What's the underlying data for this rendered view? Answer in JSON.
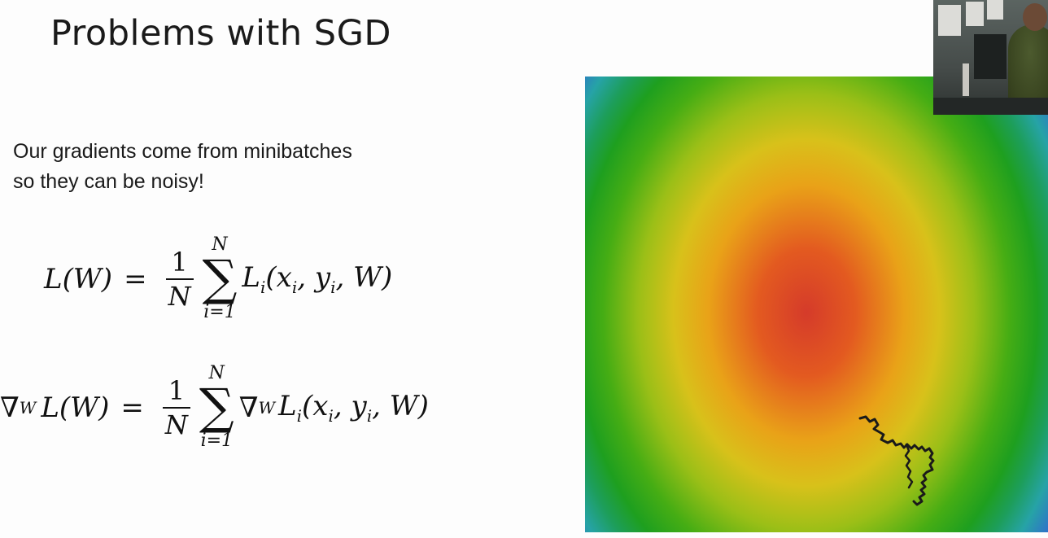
{
  "slide": {
    "title": "Problems with SGD",
    "body_lines": [
      "Our gradients come from minibatches",
      "so they can be noisy!"
    ]
  },
  "formula1": {
    "lhs": "L(W)",
    "eq": "=",
    "frac_num": "1",
    "frac_den": "N",
    "sum_top": "N",
    "sum_bottom": "i=1",
    "term": "L",
    "term_sub": "i",
    "args": "(x",
    "args_sub1": "i",
    "args_mid": ", y",
    "args_sub2": "i",
    "args_end": ", W)"
  },
  "formula2": {
    "nabla": "∇",
    "nabla_sub": "W",
    "lhs": "L(W)",
    "eq": "=",
    "frac_num": "1",
    "frac_den": "N",
    "sum_top": "N",
    "sum_bottom": "i=1",
    "term_nabla": "∇",
    "term_nabla_sub": "W",
    "term": "L",
    "term_sub": "i",
    "args": "(x",
    "args_sub1": "i",
    "args_mid": ", y",
    "args_sub2": "i",
    "args_end": ", W)"
  },
  "visual": {
    "landscape_center_color": "#d53b2a",
    "path_color": "#1a1a1a"
  },
  "icons": {
    "sigma": "∑"
  }
}
